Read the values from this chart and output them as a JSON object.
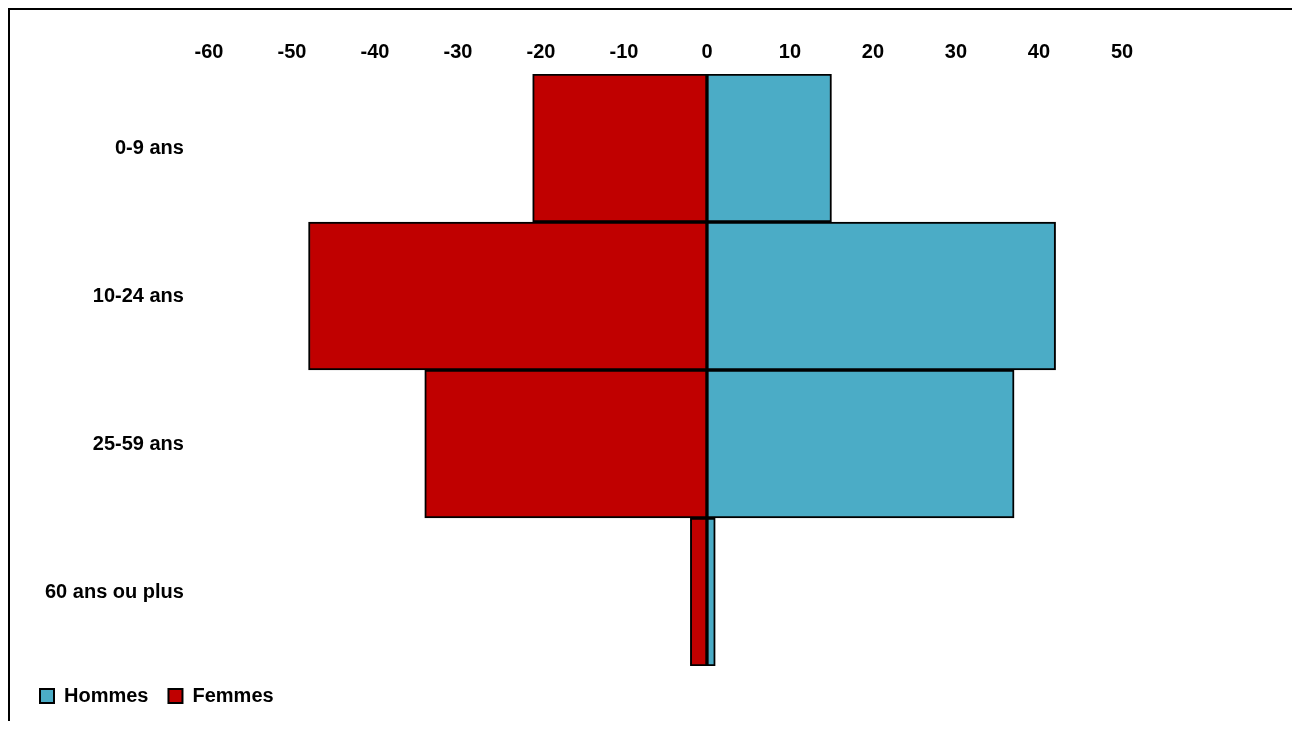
{
  "chart_data": {
    "type": "bar",
    "orientation": "horizontal",
    "stacked": true,
    "categories": [
      "0-9 ans",
      "10-24 ans",
      "25-59 ans",
      "60 ans ou plus"
    ],
    "series": [
      {
        "name": "Hommes",
        "color": "#4bacc6",
        "values": [
          15,
          42,
          37,
          1
        ]
      },
      {
        "name": "Femmes",
        "color": "#c00000",
        "values": [
          -21,
          -48,
          -34,
          -2
        ]
      }
    ],
    "xlim": [
      -60,
      50
    ],
    "xticks": [
      -60,
      -50,
      -40,
      -30,
      -20,
      -10,
      0,
      10,
      20,
      30,
      40,
      50
    ],
    "grid": false,
    "legend": "bottom left"
  }
}
